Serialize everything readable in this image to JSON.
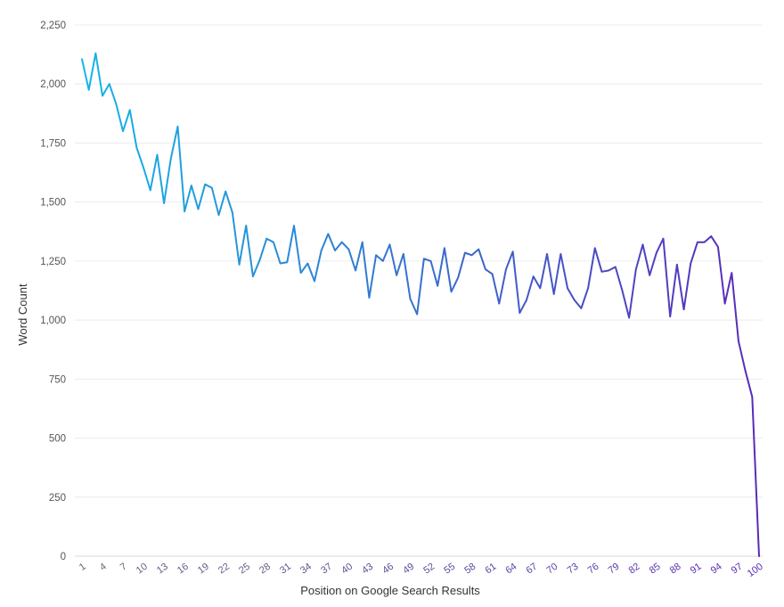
{
  "chart_data": {
    "type": "line",
    "xlabel": "Position on Google Search Results",
    "ylabel": "Word Count",
    "ylim": [
      0,
      2250
    ],
    "yticks": [
      0,
      250,
      500,
      750,
      1000,
      1250,
      1500,
      1750,
      2000,
      2250
    ],
    "ytick_labels": [
      "0",
      "250",
      "500",
      "750",
      "1,000",
      "1,250",
      "1,500",
      "1,750",
      "2,000",
      "2,250"
    ],
    "xlim": [
      1,
      100
    ],
    "xticks": [
      1,
      4,
      7,
      10,
      13,
      16,
      19,
      22,
      25,
      28,
      31,
      34,
      37,
      40,
      43,
      46,
      49,
      52,
      55,
      58,
      61,
      64,
      67,
      70,
      73,
      76,
      79,
      82,
      85,
      88,
      91,
      94,
      97,
      100
    ],
    "grid": true,
    "legend": "none",
    "colors": {
      "start": "#15b5e6",
      "end": "#5a2ab8",
      "tick_start": "#5f6b78",
      "tick_end": "#5a2ab8"
    },
    "series": [
      {
        "x": [
          1,
          2,
          3,
          4,
          5,
          6,
          7,
          8,
          9,
          10,
          11,
          12,
          13,
          14,
          15,
          16,
          17,
          18,
          19,
          20,
          21,
          22,
          23,
          24,
          25,
          26,
          27,
          28,
          29,
          30,
          31,
          32,
          33,
          34,
          35,
          36,
          37,
          38,
          39,
          40,
          41,
          42,
          43,
          44,
          45,
          46,
          47,
          48,
          49,
          50,
          51,
          52,
          53,
          54,
          55,
          56,
          57,
          58,
          59,
          60,
          61,
          62,
          63,
          64,
          65,
          66,
          67,
          68,
          69,
          70,
          71,
          72,
          73,
          74,
          75,
          76,
          77,
          78,
          79,
          80,
          81,
          82,
          83,
          84,
          85,
          86,
          87,
          88,
          89,
          90,
          91,
          92,
          93,
          94,
          95,
          96,
          97,
          98,
          99,
          100
        ],
        "values": [
          2105,
          1975,
          2130,
          1950,
          2000,
          1915,
          1800,
          1890,
          1730,
          1645,
          1550,
          1700,
          1495,
          1685,
          1820,
          1460,
          1570,
          1470,
          1575,
          1560,
          1445,
          1545,
          1455,
          1235,
          1400,
          1185,
          1255,
          1345,
          1330,
          1240,
          1245,
          1400,
          1200,
          1240,
          1165,
          1295,
          1365,
          1295,
          1330,
          1300,
          1210,
          1330,
          1095,
          1275,
          1250,
          1320,
          1190,
          1280,
          1090,
          1025,
          1260,
          1250,
          1145,
          1305,
          1120,
          1180,
          1285,
          1275,
          1300,
          1215,
          1195,
          1070,
          1215,
          1290,
          1030,
          1085,
          1185,
          1135,
          1280,
          1110,
          1280,
          1135,
          1085,
          1050,
          1135,
          1305,
          1205,
          1210,
          1225,
          1125,
          1010,
          1215,
          1320,
          1190,
          1285,
          1345,
          1015,
          1235,
          1045,
          1240,
          1330,
          1330,
          1355,
          1310,
          1070,
          1200,
          910,
          785,
          675,
          0
        ]
      }
    ]
  }
}
